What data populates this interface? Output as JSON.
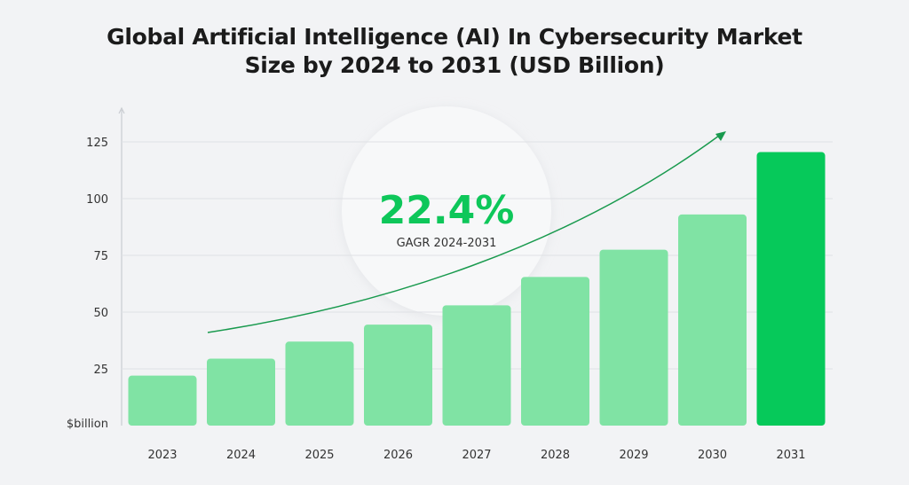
{
  "title_line1": "Global Artificial Intelligence (AI) In Cybersecurity Market",
  "title_line2": "Size by 2024 to 2031 (USD Billion)",
  "chart_data": {
    "type": "bar",
    "title": "Global Artificial Intelligence (AI) In Cybersecurity Market Size by 2024 to 2031 (USD Billion)",
    "categories": [
      "2023",
      "2024",
      "2025",
      "2026",
      "2027",
      "2028",
      "2029",
      "2030",
      "2031"
    ],
    "values": [
      22,
      29.5,
      37,
      44.5,
      53,
      65.5,
      77.5,
      93,
      120.5
    ],
    "ylabel": "$billion",
    "xlabel": "",
    "ylim": [
      0,
      125
    ],
    "yticks": [
      25,
      50,
      75,
      100,
      125
    ],
    "grid": true,
    "highlight_category": "2031",
    "annotation": {
      "value": "22.4%",
      "label": "GAGR 2024-2031"
    },
    "colors": {
      "bar": "#80e3a4",
      "highlight_bar": "#06c95a",
      "annotation_text": "#0ec75a",
      "trend_arrow": "#199a4e",
      "grid": "#dfe1e5"
    }
  }
}
